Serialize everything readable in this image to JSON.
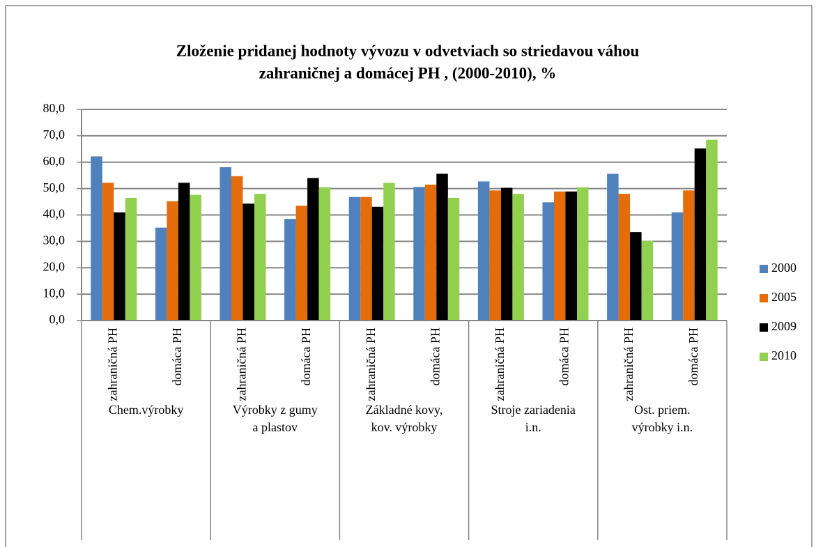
{
  "chart_data": {
    "type": "bar",
    "title": [
      "Zloženie pridanej hodnoty vývozu v odvetviach so striedavou váhou",
      "zahraničnej a domácej PH , (2000-2010), %"
    ],
    "groups": [
      [
        "Chem.výrobky"
      ],
      [
        "Výrobky z gumy",
        "a plastov"
      ],
      [
        "Základné kovy,",
        "kov. výrobky"
      ],
      [
        "Stroje zariadenia",
        "i.n."
      ],
      [
        "Ost. priem.",
        "výrobky i.n."
      ]
    ],
    "categories": [
      "zahraničná PH",
      "domáca PH",
      "zahraničná PH",
      "domáca PH",
      "zahraničná PH",
      "domáca PH",
      "zahraničná PH",
      "domáca PH",
      "zahraničná PH",
      "domáca PH"
    ],
    "series": [
      {
        "name": "2000",
        "color": "#4f81bd",
        "values": [
          62.2,
          35.2,
          58.1,
          38.5,
          46.8,
          50.6,
          52.7,
          44.8,
          55.6,
          41.0
        ]
      },
      {
        "name": "2005",
        "color": "#e46c0a",
        "values": [
          52.2,
          45.2,
          54.7,
          43.5,
          46.8,
          51.5,
          49.3,
          48.9,
          48.0,
          49.3
        ]
      },
      {
        "name": "2009",
        "color": "#000000",
        "values": [
          41.0,
          52.2,
          44.3,
          54.0,
          43.1,
          55.6,
          50.3,
          48.9,
          33.5,
          65.2
        ]
      },
      {
        "name": "2010",
        "color": "#92d050",
        "values": [
          46.5,
          47.6,
          48.0,
          50.5,
          52.2,
          46.5,
          48.0,
          50.5,
          30.2,
          68.5
        ]
      }
    ],
    "ylim": [
      0,
      80
    ],
    "yticks": [
      {
        "value": 0,
        "label": "0,0"
      },
      {
        "value": 10,
        "label": "10,0"
      },
      {
        "value": 20,
        "label": "20,0"
      },
      {
        "value": 30,
        "label": "30,0"
      },
      {
        "value": 40,
        "label": "40,0"
      },
      {
        "value": 50,
        "label": "50,0"
      },
      {
        "value": 60,
        "label": "60,0"
      },
      {
        "value": 70,
        "label": "70,0"
      },
      {
        "value": 80,
        "label": "80,0"
      }
    ],
    "grid": true,
    "legend": "right"
  }
}
